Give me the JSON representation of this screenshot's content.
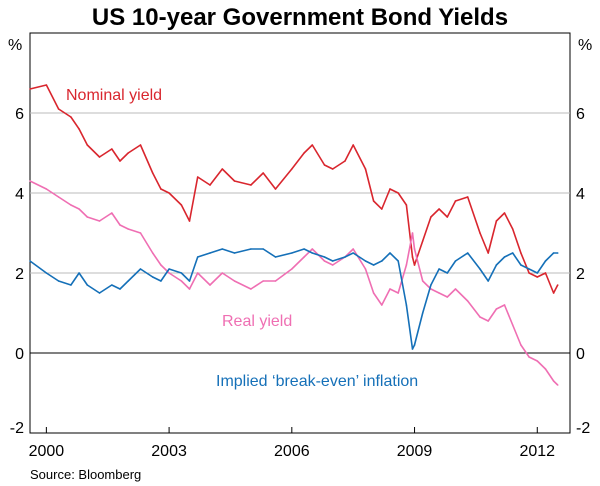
{
  "chart_data": {
    "type": "line",
    "title": "US 10-year Government Bond Yields",
    "y_unit_left": "%",
    "y_unit_right": "%",
    "source": "Source: Bloomberg",
    "ylim": [
      -2,
      8
    ],
    "xlim": [
      1999.6,
      2012.8
    ],
    "y_ticks": [
      -2,
      0,
      2,
      4,
      6
    ],
    "y_tick_labels": [
      "-2",
      "0",
      "2",
      "4",
      "6"
    ],
    "x_ticks": [
      2000,
      2003,
      2006,
      2009,
      2012
    ],
    "x_tick_labels": [
      "2000",
      "2003",
      "2006",
      "2009",
      "2012"
    ],
    "colors": {
      "nominal": "#d9262e",
      "real": "#ef6fb3",
      "breakeven": "#1570b8"
    },
    "series": [
      {
        "name": "Nominal yield",
        "color": "#d9262e",
        "x": [
          1999.6,
          2000.0,
          2000.3,
          2000.6,
          2000.8,
          2001.0,
          2001.3,
          2001.6,
          2001.8,
          2002.0,
          2002.3,
          2002.6,
          2002.8,
          2003.0,
          2003.3,
          2003.5,
          2003.7,
          2004.0,
          2004.3,
          2004.6,
          2005.0,
          2005.3,
          2005.6,
          2006.0,
          2006.3,
          2006.5,
          2006.8,
          2007.0,
          2007.3,
          2007.5,
          2007.8,
          2008.0,
          2008.2,
          2008.4,
          2008.6,
          2008.8,
          2008.95,
          2009.0,
          2009.2,
          2009.4,
          2009.6,
          2009.8,
          2010.0,
          2010.3,
          2010.6,
          2010.8,
          2011.0,
          2011.2,
          2011.4,
          2011.6,
          2011.8,
          2012.0,
          2012.2,
          2012.4,
          2012.5
        ],
        "values": [
          6.6,
          6.7,
          6.1,
          5.9,
          5.6,
          5.2,
          4.9,
          5.1,
          4.8,
          5.0,
          5.2,
          4.5,
          4.1,
          4.0,
          3.7,
          3.3,
          4.4,
          4.2,
          4.6,
          4.3,
          4.2,
          4.5,
          4.1,
          4.6,
          5.0,
          5.2,
          4.7,
          4.6,
          4.8,
          5.2,
          4.6,
          3.8,
          3.6,
          4.1,
          4.0,
          3.7,
          2.4,
          2.2,
          2.8,
          3.4,
          3.6,
          3.4,
          3.8,
          3.9,
          3.0,
          2.5,
          3.3,
          3.5,
          3.1,
          2.5,
          2.0,
          1.9,
          2.0,
          1.5,
          1.7
        ]
      },
      {
        "name": "Real yield",
        "color": "#ef6fb3",
        "x": [
          1999.6,
          2000.0,
          2000.3,
          2000.6,
          2000.8,
          2001.0,
          2001.3,
          2001.6,
          2001.8,
          2002.0,
          2002.3,
          2002.6,
          2002.8,
          2003.0,
          2003.3,
          2003.5,
          2003.7,
          2004.0,
          2004.3,
          2004.6,
          2005.0,
          2005.3,
          2005.6,
          2006.0,
          2006.3,
          2006.5,
          2006.8,
          2007.0,
          2007.3,
          2007.5,
          2007.8,
          2008.0,
          2008.2,
          2008.4,
          2008.6,
          2008.8,
          2008.95,
          2009.0,
          2009.2,
          2009.4,
          2009.6,
          2009.8,
          2010.0,
          2010.3,
          2010.6,
          2010.8,
          2011.0,
          2011.2,
          2011.4,
          2011.6,
          2011.8,
          2012.0,
          2012.2,
          2012.4,
          2012.5
        ],
        "values": [
          4.3,
          4.1,
          3.9,
          3.7,
          3.6,
          3.4,
          3.3,
          3.5,
          3.2,
          3.1,
          3.0,
          2.5,
          2.2,
          2.0,
          1.8,
          1.6,
          2.0,
          1.7,
          2.0,
          1.8,
          1.6,
          1.8,
          1.8,
          2.1,
          2.4,
          2.6,
          2.3,
          2.2,
          2.4,
          2.6,
          2.1,
          1.5,
          1.2,
          1.6,
          1.5,
          2.2,
          3.0,
          2.6,
          1.8,
          1.6,
          1.5,
          1.4,
          1.6,
          1.3,
          0.9,
          0.8,
          1.1,
          1.2,
          0.7,
          0.2,
          -0.1,
          -0.2,
          -0.4,
          -0.7,
          -0.8
        ]
      },
      {
        "name": "Implied ‘break-even’ inflation",
        "color": "#1570b8",
        "x": [
          1999.6,
          2000.0,
          2000.3,
          2000.6,
          2000.8,
          2001.0,
          2001.3,
          2001.6,
          2001.8,
          2002.0,
          2002.3,
          2002.6,
          2002.8,
          2003.0,
          2003.3,
          2003.5,
          2003.7,
          2004.0,
          2004.3,
          2004.6,
          2005.0,
          2005.3,
          2005.6,
          2006.0,
          2006.3,
          2006.5,
          2006.8,
          2007.0,
          2007.3,
          2007.5,
          2007.8,
          2008.0,
          2008.2,
          2008.4,
          2008.6,
          2008.8,
          2008.95,
          2009.0,
          2009.2,
          2009.4,
          2009.6,
          2009.8,
          2010.0,
          2010.3,
          2010.6,
          2010.8,
          2011.0,
          2011.2,
          2011.4,
          2011.6,
          2011.8,
          2012.0,
          2012.2,
          2012.4,
          2012.5
        ],
        "values": [
          2.3,
          2.0,
          1.8,
          1.7,
          2.0,
          1.7,
          1.5,
          1.7,
          1.6,
          1.8,
          2.1,
          1.9,
          1.8,
          2.1,
          2.0,
          1.8,
          2.4,
          2.5,
          2.6,
          2.5,
          2.6,
          2.6,
          2.4,
          2.5,
          2.6,
          2.5,
          2.4,
          2.3,
          2.4,
          2.5,
          2.3,
          2.2,
          2.3,
          2.5,
          2.3,
          1.2,
          0.1,
          0.2,
          1.0,
          1.7,
          2.1,
          2.0,
          2.3,
          2.5,
          2.1,
          1.8,
          2.2,
          2.4,
          2.5,
          2.2,
          2.1,
          2.0,
          2.3,
          2.5,
          2.5
        ]
      }
    ],
    "annotations": [
      {
        "text": "Nominal yield",
        "series": "Nominal yield"
      },
      {
        "text": "Real yield",
        "series": "Real yield"
      },
      {
        "text": "Implied ‘break-even’ inflation",
        "series": "Implied ‘break-even’ inflation"
      }
    ]
  }
}
